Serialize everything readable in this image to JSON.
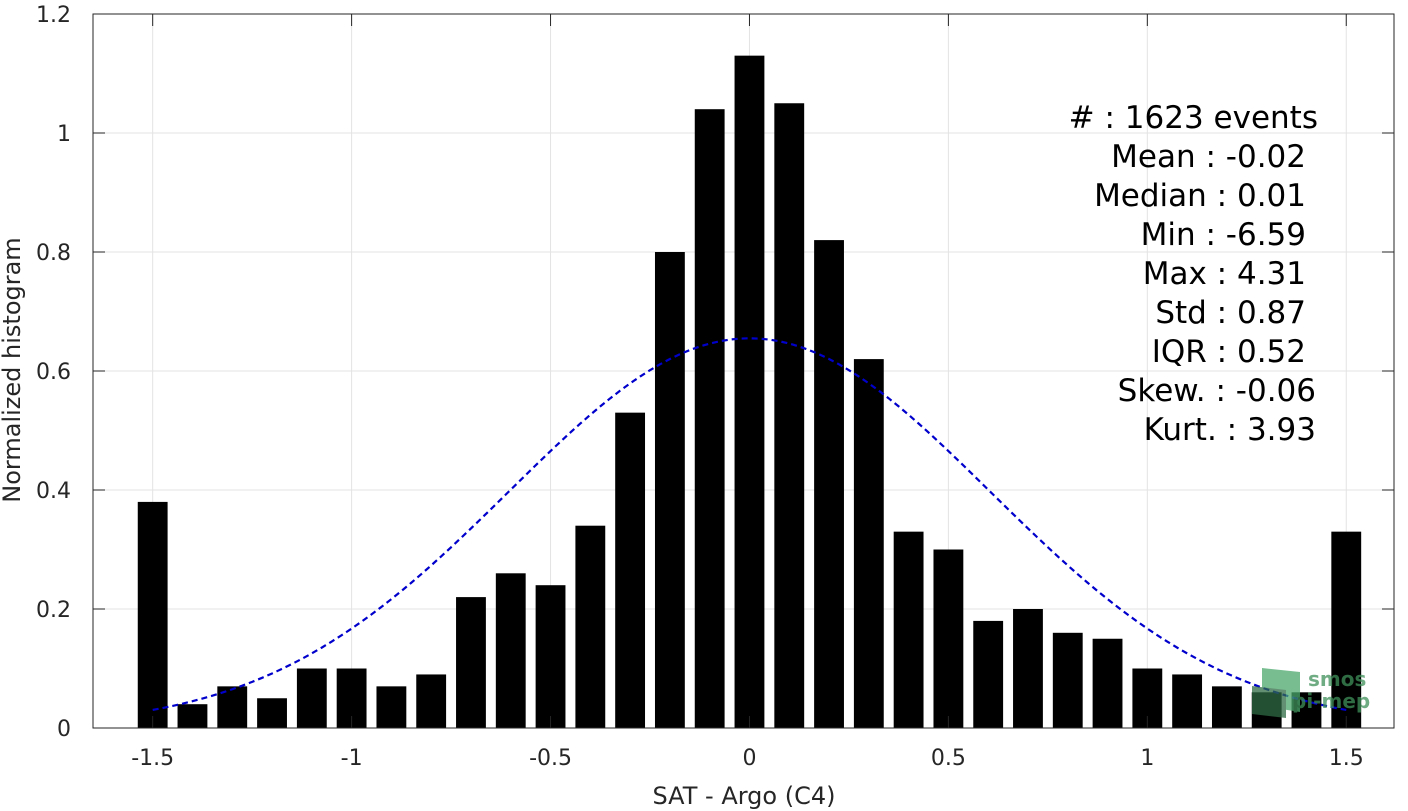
{
  "chart_data": {
    "type": "bar",
    "xlabel": "SAT - Argo (C4)",
    "ylabel": "Normalized histogram",
    "xlim": [
      -1.65,
      1.62
    ],
    "ylim": [
      0,
      1.2
    ],
    "xticks": [
      -1.5,
      -1,
      -0.5,
      0,
      0.5,
      1,
      1.5
    ],
    "xtick_labels": [
      "-1.5",
      "-1",
      "-0.5",
      "0",
      "0.5",
      "1",
      "1.5"
    ],
    "yticks": [
      0,
      0.2,
      0.4,
      0.6,
      0.8,
      1,
      1.2
    ],
    "ytick_labels": [
      "0",
      "0.2",
      "0.4",
      "0.6",
      "0.8",
      "1",
      "1.2"
    ],
    "grid": true,
    "bar_color": "#000000",
    "bars": {
      "x": [
        -1.5,
        -1.4,
        -1.3,
        -1.2,
        -1.1,
        -1.0,
        -0.9,
        -0.8,
        -0.7,
        -0.6,
        -0.5,
        -0.4,
        -0.3,
        -0.2,
        -0.1,
        0.0,
        0.1,
        0.2,
        0.3,
        0.4,
        0.5,
        0.6,
        0.7,
        0.8,
        0.9,
        1.0,
        1.1,
        1.2,
        1.3,
        1.4,
        1.5
      ],
      "values": [
        0.38,
        0.04,
        0.07,
        0.05,
        0.1,
        0.1,
        0.07,
        0.09,
        0.22,
        0.26,
        0.24,
        0.34,
        0.53,
        0.8,
        1.04,
        1.13,
        1.05,
        0.82,
        0.62,
        0.33,
        0.3,
        0.18,
        0.2,
        0.16,
        0.15,
        0.1,
        0.09,
        0.07,
        0.06,
        0.06,
        0.33
      ]
    },
    "fit_curve": {
      "style": "dashed",
      "color": "#0000cc",
      "x_range": [
        -1.5,
        1.5
      ],
      "peak": 0.655,
      "mean": 0.0,
      "sigma": 0.605
    },
    "annotations": [
      "#  : 1623 events",
      "Mean : -0.02",
      "Median : 0.01",
      "Min : -6.59",
      "Max : 4.31",
      "Std : 0.87",
      "IQR : 0.52",
      "Skew. : -0.06",
      "Kurt. : 3.93"
    ]
  },
  "watermark": {
    "line1": "smos",
    "line2": "pi-mep",
    "color": "#3f8f5a"
  }
}
